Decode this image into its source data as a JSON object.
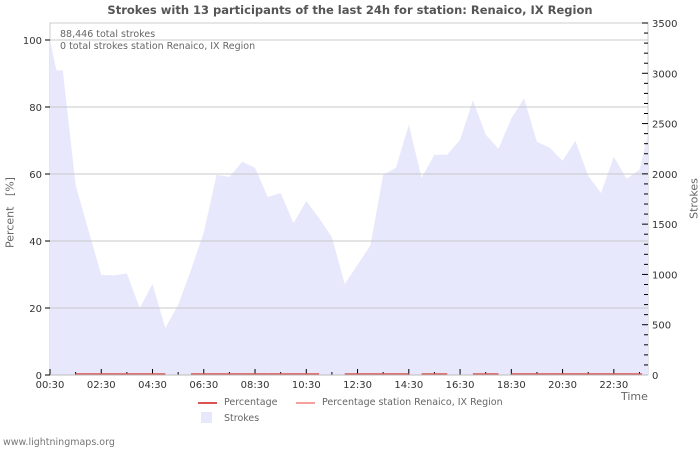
{
  "chart_data": {
    "type": "area",
    "title": "Strokes with 13 participants of the last 24h for station: Renaico, IX Region",
    "xlabel": "Time",
    "ylabel_left": "Percent   [%]",
    "ylabel_right": "Strokes",
    "ylim_left": [
      0,
      105
    ],
    "ylim_right": [
      0,
      3500
    ],
    "y_ticks_left": [
      "0",
      "20",
      "40",
      "60",
      "80",
      "100"
    ],
    "y_ticks_right": [
      "0",
      "500",
      "1000",
      "1500",
      "2000",
      "2500",
      "3000",
      "3500"
    ],
    "x_ticks": [
      "00:30",
      "02:30",
      "04:30",
      "06:30",
      "08:30",
      "10:30",
      "12:30",
      "14:30",
      "16:30",
      "18:30",
      "20:30",
      "22:30"
    ],
    "grid": true,
    "legend_position": "bottom",
    "annotations": [
      "88,446 total strokes",
      "0 total strokes station Renaico, IX Region"
    ],
    "series": [
      {
        "name": "Strokes",
        "type": "area",
        "axis": "right",
        "color": "#e8e8fc",
        "x": [
          "00:30",
          "00:45",
          "01:00",
          "01:30",
          "02:00",
          "02:30",
          "03:00",
          "03:30",
          "04:00",
          "04:30",
          "05:00",
          "05:30",
          "06:00",
          "06:30",
          "07:00",
          "07:30",
          "08:00",
          "08:30",
          "09:00",
          "09:30",
          "10:00",
          "10:30",
          "11:00",
          "11:30",
          "12:00",
          "12:30",
          "13:00",
          "13:30",
          "14:00",
          "14:30",
          "15:00",
          "15:30",
          "16:00",
          "16:30",
          "17:00",
          "17:30",
          "18:00",
          "18:30",
          "19:00",
          "19:30",
          "20:00",
          "20:30",
          "21:00",
          "21:30",
          "22:00",
          "22:30",
          "23:00",
          "23:30",
          "23:50"
        ],
        "values": [
          3330,
          3030,
          3030,
          1890,
          1440,
          995,
          990,
          1010,
          666,
          905,
          467,
          696,
          1044,
          1420,
          1990,
          1970,
          2120,
          2060,
          1770,
          1810,
          1510,
          1730,
          1560,
          1370,
          905,
          1094,
          1290,
          1990,
          2060,
          2490,
          1960,
          2190,
          2190,
          2340,
          2730,
          2390,
          2250,
          2550,
          2750,
          2320,
          2260,
          2130,
          2330,
          1980,
          1810,
          2170,
          1950,
          2040,
          2400
        ]
      },
      {
        "name": "Percentage",
        "type": "line",
        "axis": "left",
        "color": "#d9534f",
        "values_note": "near 0% throughout"
      },
      {
        "name": "Percentage station Renaico, IX Region",
        "type": "line",
        "axis": "left",
        "color": "#f4a09c"
      }
    ]
  },
  "header": {
    "title": "Strokes with 13 participants of the last 24h for station: Renaico, IX Region"
  },
  "annotations": {
    "total": "88,446 total strokes",
    "station": "0 total strokes station Renaico, IX Region"
  },
  "axes": {
    "left_label": "Percent   [%]",
    "right_label": "Strokes",
    "x_label": "Time"
  },
  "legend": {
    "items": [
      {
        "label": "Percentage",
        "color": "#d9534f"
      },
      {
        "label": "Percentage station Renaico, IX Region",
        "color": "#f4a09c"
      },
      {
        "label": "Strokes",
        "color": "#e8e8fc"
      }
    ]
  },
  "footer": {
    "text": "www.lightningmaps.org"
  }
}
